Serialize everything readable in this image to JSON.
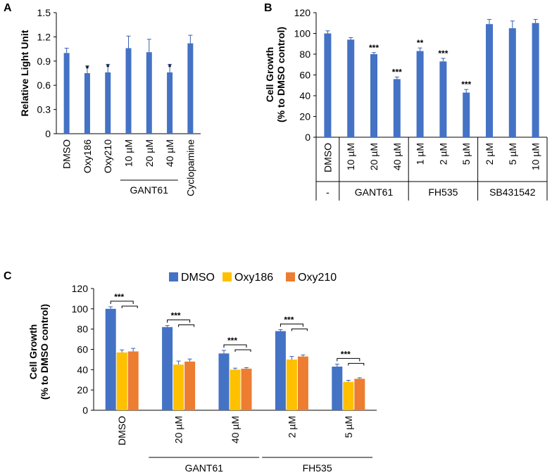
{
  "colors": {
    "blue": "#4472C4",
    "yellow": "#FFC000",
    "orange": "#ED7D31",
    "axis": "#000000"
  },
  "chart_data": [
    {
      "panel": "A",
      "type": "bar",
      "ylabel": "Relative Light Unit",
      "ylim": [
        0,
        1.5
      ],
      "yticks": [
        "0",
        "0.3",
        "0.6",
        "0.9",
        "1.2",
        "1.5"
      ],
      "categories": [
        "DMSO",
        "Oxy186",
        "Oxy210",
        "10 µM",
        "20 µM",
        "40 µM",
        "Cyclopamine"
      ],
      "values": [
        1.0,
        0.75,
        0.76,
        1.06,
        1.01,
        0.76,
        1.12
      ],
      "errors": [
        0.06,
        0.09,
        0.1,
        0.15,
        0.16,
        0.1,
        0.1
      ],
      "annotations": [
        "",
        "*",
        "*",
        "",
        "",
        "*",
        ""
      ],
      "groups": [
        {
          "label": "GANT61",
          "start": 3,
          "end": 5
        }
      ]
    },
    {
      "panel": "B",
      "type": "bar",
      "ylabel": "Cell Growth",
      "ylabel2": "(% to DMSO control)",
      "ylim": [
        0,
        120
      ],
      "yticks": [
        "0",
        "20",
        "40",
        "60",
        "80",
        "100",
        "120"
      ],
      "categories": [
        "DMSO",
        "10 µM",
        "20 µM",
        "40 µM",
        "1 µM",
        "2 µM",
        "5 µM",
        "2 µM",
        "5 µM",
        "10 µM"
      ],
      "values": [
        100,
        94,
        80,
        56,
        83,
        73,
        43,
        109,
        105,
        110
      ],
      "errors": [
        2.5,
        2,
        1.5,
        2,
        3,
        3,
        3,
        4.5,
        7,
        3.5
      ],
      "annotations": [
        "",
        "",
        "***",
        "***",
        "**",
        "***",
        "***",
        "",
        "",
        ""
      ],
      "groups": [
        {
          "label": "-",
          "start": 0,
          "end": 0
        },
        {
          "label": "GANT61",
          "start": 1,
          "end": 3
        },
        {
          "label": "FH535",
          "start": 4,
          "end": 6
        },
        {
          "label": "SB431542",
          "start": 7,
          "end": 9
        }
      ]
    },
    {
      "panel": "C",
      "type": "bar",
      "ylabel": "Cell Growth",
      "ylabel2": "(% to DMSO control)",
      "ylim": [
        0,
        120
      ],
      "yticks": [
        "0",
        "20",
        "40",
        "60",
        "80",
        "100",
        "120"
      ],
      "categories": [
        "DMSO",
        "20 µM",
        "40 µM",
        "2 µM",
        "5 µM"
      ],
      "legend": [
        "DMSO",
        "Oxy186",
        "Oxy210"
      ],
      "series": [
        {
          "name": "DMSO",
          "values": [
            100,
            82,
            56,
            78,
            43
          ],
          "errors": [
            2,
            1.5,
            3,
            1.5,
            2.5
          ]
        },
        {
          "name": "Oxy186",
          "values": [
            57,
            45,
            40,
            50,
            28
          ],
          "errors": [
            2.5,
            3.5,
            1.5,
            3,
            1.5
          ]
        },
        {
          "name": "Oxy210",
          "values": [
            58,
            48,
            41,
            53,
            31
          ],
          "errors": [
            3,
            2.5,
            1,
            1.5,
            1
          ]
        }
      ],
      "annotations": [
        "***",
        "***",
        "***",
        "***",
        "***"
      ],
      "groups": [
        {
          "label": "GANT61",
          "start": 1,
          "end": 2
        },
        {
          "label": "FH535",
          "start": 3,
          "end": 4
        }
      ]
    }
  ]
}
